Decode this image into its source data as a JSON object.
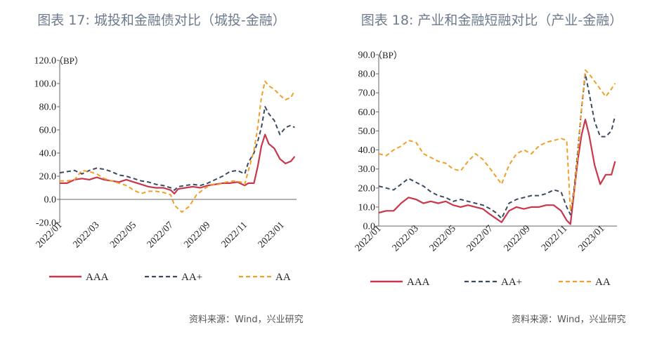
{
  "chart_data": [
    {
      "type": "line",
      "title": "图表 17: 城投和金融债对比（城投-金融）",
      "unit": "（BP）",
      "yticks": [
        "120.0",
        "100.0",
        "80.0",
        "60.0",
        "40.0",
        "20.0",
        "0.0",
        "-20.0"
      ],
      "ylim": [
        -20,
        120
      ],
      "xticks": [
        "2022/01",
        "2022/03",
        "2022/05",
        "2022/07",
        "2022/09",
        "2022/11",
        "2023/01"
      ],
      "xlim": [
        0,
        12.8
      ],
      "grid": false,
      "legend_position": "bottom",
      "source": "资料来源：Wind，兴业研究",
      "series": [
        {
          "name": "AAA",
          "color": "#c8374b",
          "style": "solid",
          "x": [
            0,
            0.4,
            0.8,
            1.2,
            1.6,
            2,
            2.4,
            2.8,
            3.2,
            3.6,
            4,
            4.4,
            4.8,
            5.2,
            5.6,
            6,
            6.2,
            6.4,
            6.8,
            7.2,
            7.6,
            8,
            8.4,
            8.8,
            9.2,
            9.6,
            10,
            10.2,
            10.5,
            10.7,
            10.9,
            11.1,
            11.3,
            11.6,
            11.9,
            12.2,
            12.5,
            12.7
          ],
          "y": [
            14,
            14,
            17,
            18,
            17,
            19,
            17,
            16,
            15,
            17,
            15,
            13,
            11,
            10,
            10,
            8,
            5,
            9,
            10,
            11,
            10,
            12,
            13,
            14,
            14,
            15,
            12,
            14,
            14,
            28,
            46,
            56,
            48,
            44,
            35,
            31,
            33,
            37
          ]
        },
        {
          "name": "AA+",
          "color": "#3b4a61",
          "style": "dashed",
          "x": [
            0,
            0.4,
            0.8,
            1.2,
            1.6,
            2,
            2.4,
            2.8,
            3.2,
            3.6,
            4,
            4.4,
            4.8,
            5.2,
            5.6,
            6,
            6.2,
            6.4,
            6.8,
            7.2,
            7.6,
            8,
            8.4,
            8.8,
            9.2,
            9.6,
            10,
            10.2,
            10.5,
            10.7,
            10.9,
            11.1,
            11.3,
            11.6,
            11.9,
            12.2,
            12.5,
            12.7
          ],
          "y": [
            23,
            24,
            25,
            22,
            25,
            27,
            26,
            24,
            21,
            20,
            18,
            16,
            15,
            13,
            12,
            10,
            8,
            11,
            12,
            13,
            12,
            14,
            17,
            20,
            24,
            25,
            22,
            32,
            40,
            50,
            62,
            80,
            74,
            68,
            56,
            62,
            64,
            62
          ]
        },
        {
          "name": "AA",
          "color": "#f0a028",
          "style": "dashed",
          "x": [
            0,
            0.4,
            0.8,
            1.2,
            1.6,
            2,
            2.4,
            2.8,
            3.2,
            3.6,
            4,
            4.4,
            4.8,
            5.2,
            5.6,
            6,
            6.2,
            6.6,
            7,
            7.4,
            7.8,
            8.2,
            8.6,
            9,
            9.4,
            9.8,
            10,
            10.2,
            10.5,
            10.7,
            10.9,
            11.1,
            11.3,
            11.6,
            11.9,
            12.2,
            12.5,
            12.7
          ],
          "y": [
            16,
            16,
            17,
            25,
            24,
            22,
            18,
            16,
            14,
            12,
            8,
            5,
            7,
            7,
            6,
            4,
            -5,
            -11,
            -6,
            4,
            9,
            13,
            13,
            15,
            16,
            15,
            13,
            25,
            42,
            62,
            88,
            102,
            98,
            95,
            90,
            86,
            88,
            94
          ]
        }
      ]
    },
    {
      "type": "line",
      "title": "图表 18: 产业和金融短融对比（产业-金融）",
      "unit": "（BP）",
      "yticks": [
        "90.0",
        "80.0",
        "70.0",
        "60.0",
        "50.0",
        "40.0",
        "30.0",
        "20.0",
        "10.0",
        "0.0"
      ],
      "ylim": [
        0,
        90
      ],
      "xticks": [
        "2022/01",
        "2022/03",
        "2022/05",
        "2022/07",
        "2022/09",
        "2022/11",
        "2023/01"
      ],
      "xlim": [
        0,
        12.8
      ],
      "grid": false,
      "legend_position": "bottom",
      "source": "资料来源：Wind，兴业研究",
      "series": [
        {
          "name": "AAA",
          "color": "#c8374b",
          "style": "solid",
          "x": [
            0,
            0.4,
            0.8,
            1.2,
            1.6,
            2,
            2.4,
            2.8,
            3.2,
            3.6,
            4,
            4.4,
            4.8,
            5.2,
            5.6,
            6,
            6.3,
            6.6,
            7,
            7.4,
            7.8,
            8.2,
            8.6,
            9,
            9.4,
            9.8,
            10.1,
            10.3,
            10.5,
            10.7,
            10.9,
            11.1,
            11.3,
            11.6,
            11.9,
            12.2,
            12.5,
            12.7
          ],
          "y": [
            7,
            8,
            8,
            12,
            15,
            14,
            12,
            13,
            12,
            13,
            11,
            10,
            11,
            10,
            9,
            6,
            4,
            2,
            8,
            10,
            9,
            10,
            10,
            11,
            11,
            8,
            3,
            1,
            18,
            35,
            48,
            56,
            48,
            32,
            22,
            27,
            27,
            34
          ]
        },
        {
          "name": "AA+",
          "color": "#3b4a61",
          "style": "dashed",
          "x": [
            0,
            0.4,
            0.8,
            1.2,
            1.6,
            2,
            2.4,
            2.8,
            3.2,
            3.6,
            4,
            4.4,
            4.8,
            5.2,
            5.6,
            6,
            6.3,
            6.6,
            7,
            7.4,
            7.8,
            8.2,
            8.6,
            9,
            9.4,
            9.8,
            10.1,
            10.3,
            10.5,
            10.7,
            10.9,
            11.1,
            11.3,
            11.6,
            11.9,
            12.2,
            12.5,
            12.7
          ],
          "y": [
            21,
            20,
            19,
            22,
            25,
            23,
            21,
            18,
            16,
            15,
            13,
            14,
            13,
            12,
            11,
            9,
            7,
            4,
            12,
            14,
            15,
            16,
            16,
            17,
            19,
            18,
            10,
            6,
            20,
            40,
            62,
            80,
            70,
            55,
            47,
            47,
            50,
            58
          ]
        },
        {
          "name": "AA",
          "color": "#f0a028",
          "style": "dashed",
          "x": [
            0,
            0.4,
            0.8,
            1.2,
            1.6,
            2,
            2.4,
            2.8,
            3.2,
            3.6,
            4,
            4.4,
            4.8,
            5.2,
            5.6,
            6,
            6.3,
            6.6,
            7,
            7.4,
            7.8,
            8.2,
            8.6,
            9,
            9.4,
            9.8,
            10.1,
            10.3,
            10.5,
            10.7,
            10.9,
            11.1,
            11.3,
            11.6,
            11.9,
            12.2,
            12.5,
            12.7
          ],
          "y": [
            38,
            37,
            40,
            42,
            45,
            44,
            38,
            36,
            34,
            33,
            30,
            29,
            34,
            38,
            35,
            30,
            26,
            22,
            32,
            38,
            40,
            38,
            42,
            44,
            45,
            46,
            45,
            8,
            18,
            38,
            62,
            82,
            80,
            76,
            72,
            68,
            72,
            75
          ]
        }
      ]
    }
  ]
}
